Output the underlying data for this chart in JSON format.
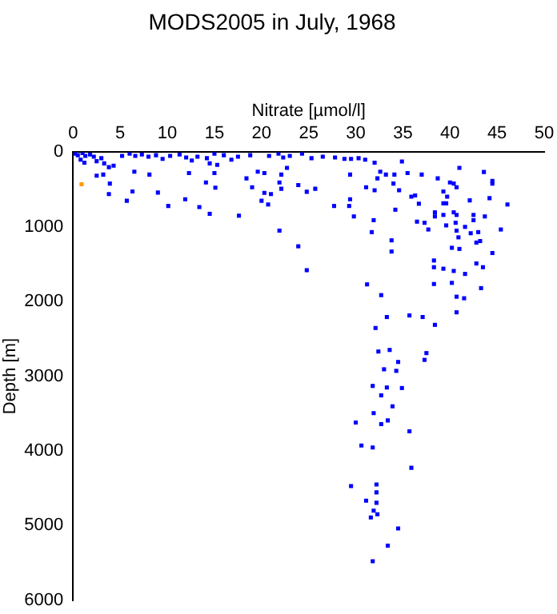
{
  "chart_data": {
    "type": "scatter",
    "title": "MODS2005 in July, 1968",
    "xlabel": "Nitrate [µmol/l]",
    "ylabel": "Depth [m]",
    "xlim": [
      0,
      50
    ],
    "xticks": [
      0,
      5,
      10,
      15,
      20,
      25,
      30,
      35,
      40,
      45,
      50
    ],
    "ylim": [
      6000,
      0
    ],
    "yticks": [
      0,
      1000,
      2000,
      3000,
      4000,
      5000,
      6000
    ],
    "grid": false,
    "legend": false,
    "marker": "square",
    "series": [
      {
        "color": "#0000ff",
        "x": [
          0.2,
          0.5,
          1,
          1.3,
          1.8,
          2.2,
          0.8,
          1.2,
          2.5,
          3,
          3.3,
          3.8,
          4.3,
          5.2,
          6,
          6.6,
          7.3,
          8,
          8.8,
          9.5,
          10.3,
          11.3,
          12,
          12.6,
          13.2,
          14.2,
          15,
          14.5,
          15.3,
          16,
          16.8,
          17.5,
          18.8,
          20.8,
          21.8,
          22.3,
          23,
          24.3,
          25.3,
          26.5,
          27.8,
          28.8,
          29.5,
          30.3,
          31,
          32,
          2.5,
          3.9,
          3.2,
          6.5,
          8.1,
          3.8,
          6.3,
          5.7,
          9,
          10.1,
          11.9,
          13.4,
          14.5,
          17.6,
          14.1,
          15,
          15.1,
          12.3,
          18.4,
          19,
          19.6,
          20.3,
          20,
          20.3,
          21,
          20.7,
          21.9,
          22.1,
          22.1,
          22.7,
          21.9,
          23.9,
          24.8,
          25.7,
          23.9,
          24.8,
          27.7,
          29.3,
          29.4,
          29.8,
          29.4,
          31.1,
          32,
          32.3,
          32.6,
          33.2,
          34.1,
          34,
          34.6,
          34.9,
          35.5,
          35.9,
          36.3,
          36.7,
          37,
          34.2,
          31.9,
          31.7,
          33.8,
          33.8,
          31.2,
          36.5,
          37.3,
          37.7,
          38.3,
          38.3,
          39.3,
          40.4,
          41.6,
          38.3,
          38.7,
          40,
          40.4,
          41,
          40.7,
          39.3,
          39.7,
          39.3,
          39.6,
          38.4,
          38.4,
          39.3,
          39.6,
          40.4,
          40.7,
          40.6,
          40.7,
          42.1,
          42.5,
          42.5,
          41.6,
          42.2,
          43,
          43.2,
          42.8,
          40.9,
          40.2,
          41,
          44.5,
          43.7,
          43.6,
          44.5,
          44.5,
          44.2,
          46.1,
          45.4,
          43.5,
          42.8,
          43.3,
          40.2,
          32.7,
          40.7,
          41.5,
          33.3,
          32.1,
          35.7,
          37.1,
          38.4,
          40.7,
          32.4,
          33.6,
          34.5,
          33,
          34.3,
          37.5,
          37.3,
          31.8,
          33.3,
          34.9,
          32.7,
          33.9,
          31.9,
          30,
          32.7,
          33.4,
          35.7,
          30.6,
          31.8,
          35.9,
          29.5,
          32.2,
          32.2,
          31.1,
          32.2,
          31.9,
          32.3,
          31.6,
          34.5,
          33.4,
          31.8
        ],
        "values": [
          20,
          40,
          10,
          50,
          30,
          60,
          100,
          140,
          120,
          80,
          150,
          200,
          180,
          50,
          20,
          50,
          30,
          60,
          40,
          90,
          50,
          30,
          70,
          110,
          60,
          80,
          20,
          150,
          170,
          40,
          100,
          60,
          40,
          50,
          20,
          70,
          50,
          20,
          80,
          60,
          70,
          90,
          90,
          80,
          100,
          140,
          315,
          420,
          300,
          260,
          300,
          560,
          525,
          650,
          540,
          720,
          630,
          735,
          825,
          850,
          405,
          280,
          475,
          280,
          350,
          470,
          260,
          280,
          650,
          545,
          560,
          700,
          405,
          490,
          300,
          210,
          1050,
          440,
          530,
          490,
          1260,
          1580,
          720,
          720,
          630,
          860,
          300,
          470,
          510,
          350,
          260,
          300,
          300,
          420,
          510,
          125,
          280,
          595,
          580,
          690,
          300,
          770,
          910,
          1070,
          1180,
          1330,
          1770,
          930,
          945,
          1035,
          1450,
          1540,
          1560,
          1590,
          1630,
          1765,
          350,
          405,
          420,
          210,
          470,
          525,
          595,
          685,
          685,
          805,
          860,
          840,
          980,
          805,
          840,
          945,
          1050,
          645,
          840,
          910,
          1000,
          1085,
          1070,
          1190,
          1210,
          1140,
          1280,
          1295,
          1350,
          860,
          265,
          385,
          420,
          615,
          700,
          1035,
          1540,
          1490,
          1820,
          1750,
          1914,
          1935,
          1956,
          2207,
          2354,
          2186,
          2207,
          2312,
          2144,
          2669,
          2648,
          2809,
          2907,
          2928,
          2690,
          2781,
          3130,
          3151,
          3158,
          3256,
          3403,
          3494,
          3620,
          3641,
          3592,
          3738,
          3927,
          3955,
          4226,
          4471,
          4450,
          4555,
          4666,
          4695,
          4800,
          4849,
          4891,
          5038,
          5268,
          5478
        ]
      },
      {
        "color": "#ff9900",
        "x": [
          0.9
        ],
        "values": [
          430
        ]
      }
    ]
  }
}
